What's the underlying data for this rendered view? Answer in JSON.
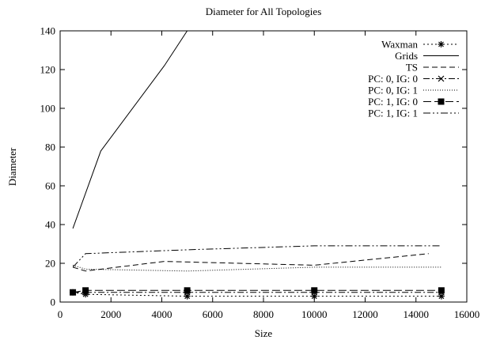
{
  "chart_data": {
    "type": "line",
    "title": "Diameter for All Topologies",
    "xlabel": "Size",
    "ylabel": "Diameter",
    "xlim": [
      0,
      16000
    ],
    "ylim": [
      0,
      140
    ],
    "xticks": [
      0,
      2000,
      4000,
      6000,
      8000,
      10000,
      12000,
      14000,
      16000
    ],
    "yticks": [
      0,
      20,
      40,
      60,
      80,
      100,
      120,
      140
    ],
    "grid": false,
    "legend_position": "top-right",
    "series": [
      {
        "name": "Waxman",
        "dash": "dotted",
        "marker": "asterisk",
        "x": [
          500,
          1000,
          5000,
          10000,
          15000
        ],
        "y": [
          5,
          4,
          3,
          3,
          3
        ]
      },
      {
        "name": "Grids",
        "dash": "solid",
        "marker": "none",
        "x": [
          500,
          1600,
          4100,
          5000
        ],
        "y": [
          38,
          78,
          122,
          140
        ]
      },
      {
        "name": "TS",
        "dash": "dashed",
        "marker": "none",
        "x": [
          500,
          1000,
          4100,
          10000,
          14500
        ],
        "y": [
          18,
          16,
          21,
          19,
          25
        ]
      },
      {
        "name": "PC: 0, IG: 0",
        "dash": "dashdot",
        "marker": "cross",
        "x": [
          500,
          1000,
          5000,
          10000,
          15000
        ],
        "y": [
          5,
          5,
          5,
          5,
          5
        ]
      },
      {
        "name": "PC: 0, IG: 1",
        "dash": "finedot",
        "marker": "none",
        "x": [
          500,
          1000,
          5000,
          10000,
          15000
        ],
        "y": [
          19,
          17,
          16,
          18,
          18
        ]
      },
      {
        "name": "PC: 1, IG: 0",
        "dash": "longdash",
        "marker": "square",
        "x": [
          500,
          1000,
          5000,
          10000,
          15000
        ],
        "y": [
          5,
          6,
          6,
          6,
          6
        ]
      },
      {
        "name": "PC: 1, IG: 1",
        "dash": "dashdotdot",
        "marker": "none",
        "x": [
          500,
          1000,
          5000,
          10000,
          15000
        ],
        "y": [
          18,
          25,
          27,
          29,
          29
        ]
      }
    ]
  }
}
